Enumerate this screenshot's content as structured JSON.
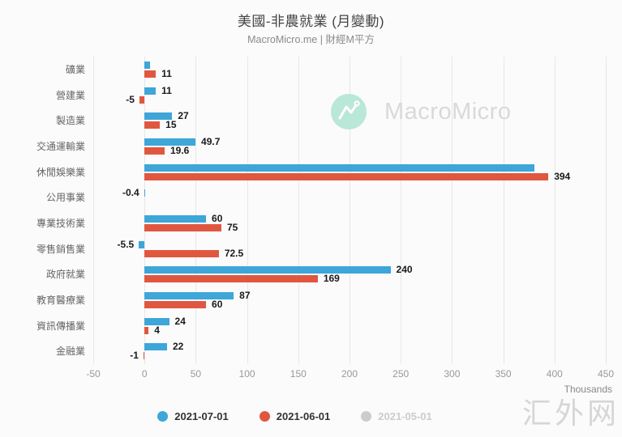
{
  "header": {
    "title": "美國-非農就業 (月變動)",
    "subtitle": "MacroMicro.me | 財經M平方"
  },
  "chart_data": {
    "type": "bar",
    "orientation": "horizontal",
    "title": "美國-非農就業 (月變動)",
    "unit_label": "Thousands",
    "xlim": [
      -50,
      450
    ],
    "xticks": [
      -50,
      0,
      50,
      100,
      150,
      200,
      250,
      300,
      350,
      400,
      450
    ],
    "grid": "vertical",
    "legend_position": "bottom",
    "categories": [
      "礦業",
      "營建業",
      "製造業",
      "交通運輸業",
      "休閒娛樂業",
      "公用事業",
      "專業技術業",
      "零售銷售業",
      "政府就業",
      "教育醫療業",
      "資訊傳播業",
      "金融業"
    ],
    "series": [
      {
        "name": "2021-07-01",
        "color": "#3ea6d8",
        "disabled": false,
        "values": [
          5,
          11,
          27,
          49.7,
          380,
          -0.4,
          60,
          -5.5,
          240,
          87,
          24,
          22
        ],
        "labels": [
          "",
          "11",
          "27",
          "49.7",
          "",
          "-0.4",
          "60",
          "-5.5",
          "240",
          "87",
          "24",
          "22"
        ]
      },
      {
        "name": "2021-06-01",
        "color": "#e0573f",
        "disabled": false,
        "values": [
          11,
          -5,
          15,
          19.6,
          394,
          0,
          75,
          72.5,
          169,
          60,
          4,
          -1
        ],
        "labels": [
          "11",
          "-5",
          "15",
          "19.6",
          "394",
          "",
          "75",
          "72.5",
          "169",
          "60",
          "4",
          "-1"
        ]
      },
      {
        "name": "2021-05-01",
        "color": "#cccccc",
        "disabled": true,
        "values": [],
        "labels": []
      }
    ]
  },
  "watermarks": {
    "brand": "MacroMicro",
    "site": "汇外网"
  },
  "colors": {
    "series_blue": "#3ea6d8",
    "series_red": "#e0573f",
    "series_disabled": "#cccccc",
    "brand_mint": "#b9e7d8"
  }
}
